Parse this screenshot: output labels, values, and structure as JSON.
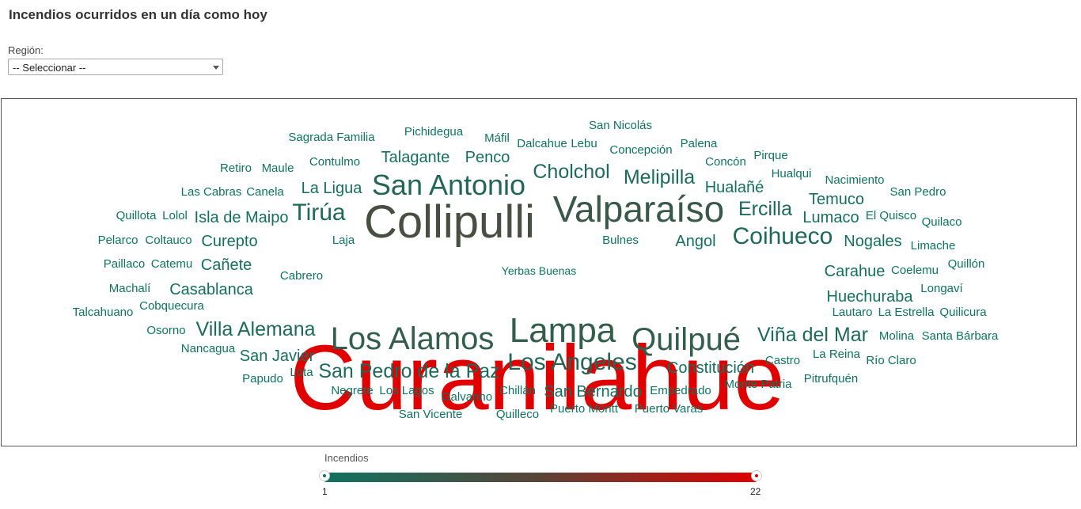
{
  "header": {
    "title": "Incendios ocurridos en un día como hoy"
  },
  "filter": {
    "label": "Región:",
    "selected": "-- Seleccionar --"
  },
  "legend": {
    "title": "Incendios",
    "min_label": "1",
    "max_label": "22",
    "min": 1,
    "max": 22,
    "color_low": "#0f7360",
    "color_high": "#e00000"
  },
  "chart_data": {
    "type": "wordcloud",
    "metric": "Incendios",
    "range": [
      1,
      22
    ],
    "words": [
      {
        "text": "Curanilahue",
        "value": 22
      },
      {
        "text": "Collipulli",
        "value": 9
      },
      {
        "text": "Valparaíso",
        "value": 7
      },
      {
        "text": "Lampa",
        "value": 6
      },
      {
        "text": "Los Alamos",
        "value": 6
      },
      {
        "text": "Quilpué",
        "value": 6
      },
      {
        "text": "San Antonio",
        "value": 4
      },
      {
        "text": "Los Angeles",
        "value": 4
      },
      {
        "text": "Coihueco",
        "value": 3
      },
      {
        "text": "Tirúa",
        "value": 3
      },
      {
        "text": "San Pedro de la Paz",
        "value": 3
      },
      {
        "text": "Cholchol",
        "value": 3
      },
      {
        "text": "Melipilla",
        "value": 3
      },
      {
        "text": "Villa Alemana",
        "value": 3
      },
      {
        "text": "Viña del Mar",
        "value": 3
      },
      {
        "text": "Ercilla",
        "value": 3
      },
      {
        "text": "Constitución",
        "value": 2
      },
      {
        "text": "Huechuraba",
        "value": 2
      },
      {
        "text": "Nogales",
        "value": 2
      },
      {
        "text": "Temuco",
        "value": 2
      },
      {
        "text": "Angol",
        "value": 2
      },
      {
        "text": "Lumaco",
        "value": 2
      },
      {
        "text": "Hualañé",
        "value": 2
      },
      {
        "text": "Carahue",
        "value": 2
      },
      {
        "text": "Casablanca",
        "value": 2
      },
      {
        "text": "Cañete",
        "value": 2
      },
      {
        "text": "Curepto",
        "value": 2
      },
      {
        "text": "Isla de Maipo",
        "value": 2
      },
      {
        "text": "San Bernardo",
        "value": 2
      },
      {
        "text": "San Javier",
        "value": 2
      },
      {
        "text": "Talagante",
        "value": 2
      },
      {
        "text": "Penco",
        "value": 2
      },
      {
        "text": "La Ligua",
        "value": 2
      },
      {
        "text": "Sagrada Familia",
        "value": 1
      },
      {
        "text": "Pichidegua",
        "value": 1
      },
      {
        "text": "Máfil",
        "value": 1
      },
      {
        "text": "Dalcahue",
        "value": 1
      },
      {
        "text": "Lebu",
        "value": 1
      },
      {
        "text": "San Nicolás",
        "value": 1
      },
      {
        "text": "Concepción",
        "value": 1
      },
      {
        "text": "Palena",
        "value": 1
      },
      {
        "text": "Retiro",
        "value": 1
      },
      {
        "text": "Maule",
        "value": 1
      },
      {
        "text": "Contulmo",
        "value": 1
      },
      {
        "text": "Concón",
        "value": 1
      },
      {
        "text": "Pirque",
        "value": 1
      },
      {
        "text": "Hualqui",
        "value": 1
      },
      {
        "text": "Nacimiento",
        "value": 1
      },
      {
        "text": "Las Cabras",
        "value": 1
      },
      {
        "text": "Canela",
        "value": 1
      },
      {
        "text": "San Pedro",
        "value": 1
      },
      {
        "text": "Quillota",
        "value": 1
      },
      {
        "text": "Lolol",
        "value": 1
      },
      {
        "text": "El Quisco",
        "value": 1
      },
      {
        "text": "Quilaco",
        "value": 1
      },
      {
        "text": "Pelarco",
        "value": 1
      },
      {
        "text": "Coltauco",
        "value": 1
      },
      {
        "text": "Laja",
        "value": 1
      },
      {
        "text": "Bulnes",
        "value": 1
      },
      {
        "text": "Limache",
        "value": 1
      },
      {
        "text": "Paillaco",
        "value": 1
      },
      {
        "text": "Catemu",
        "value": 1
      },
      {
        "text": "Coelemu",
        "value": 1
      },
      {
        "text": "Quillón",
        "value": 1
      },
      {
        "text": "Cabrero",
        "value": 1
      },
      {
        "text": "Machalí",
        "value": 1
      },
      {
        "text": "Longaví",
        "value": 1
      },
      {
        "text": "Talcahuano",
        "value": 1
      },
      {
        "text": "Cobquecura",
        "value": 1
      },
      {
        "text": "Lautaro",
        "value": 1
      },
      {
        "text": "La Estrella",
        "value": 1
      },
      {
        "text": "Quilicura",
        "value": 1
      },
      {
        "text": "Osorno",
        "value": 1
      },
      {
        "text": "Molina",
        "value": 1
      },
      {
        "text": "Santa Bárbara",
        "value": 1
      },
      {
        "text": "Nancagua",
        "value": 1
      },
      {
        "text": "Castro",
        "value": 1
      },
      {
        "text": "La Reina",
        "value": 1
      },
      {
        "text": "Río Claro",
        "value": 1
      },
      {
        "text": "Lota",
        "value": 1
      },
      {
        "text": "Papudo",
        "value": 1
      },
      {
        "text": "Pitrufquén",
        "value": 1
      },
      {
        "text": "Monte Patria",
        "value": 1
      },
      {
        "text": "Negrete",
        "value": 1
      },
      {
        "text": "Los Lagos",
        "value": 1
      },
      {
        "text": "Galvarino",
        "value": 1
      },
      {
        "text": "Chillán",
        "value": 1
      },
      {
        "text": "Empedrado",
        "value": 1
      },
      {
        "text": "Puerto Montt",
        "value": 1
      },
      {
        "text": "Puerto Varas",
        "value": 1
      },
      {
        "text": "San Vicente",
        "value": 1
      },
      {
        "text": "Quilleco",
        "value": 1
      },
      {
        "text": "Yerbas Buenas",
        "value": 1
      }
    ]
  }
}
